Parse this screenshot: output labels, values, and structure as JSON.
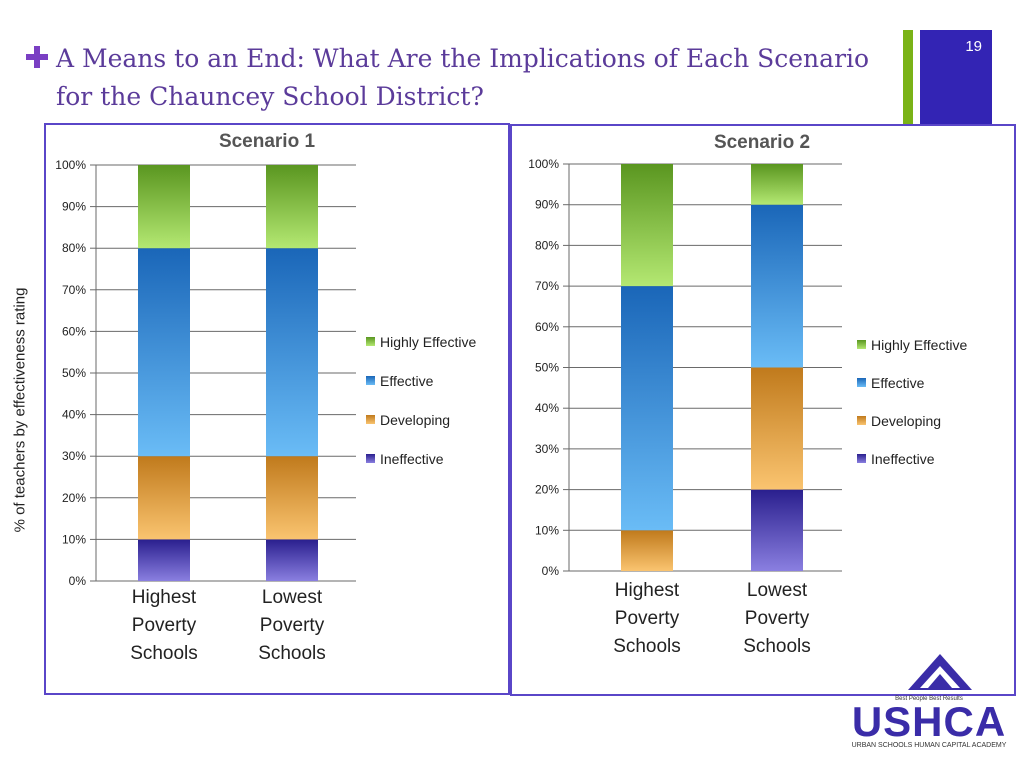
{
  "slide": {
    "title": "A Means to an End: What Are the Implications of Each Scenario for the Chauncey School District?",
    "number": "19",
    "y_axis_label": "% of teachers by effectiveness rating"
  },
  "logo": {
    "text": "USHCA",
    "tagline": "Best People Best Results",
    "subtitle": "URBAN SCHOOLS HUMAN CAPITAL ACADEMY"
  },
  "colors": {
    "accent": "#7a3fc3",
    "panel_border": "#5a46c8",
    "Ineffective": [
      "#2a1f8e",
      "#8a7fe0"
    ],
    "Developing": [
      "#c07a1c",
      "#fac470"
    ],
    "Effective": [
      "#1a66b8",
      "#6abcf6"
    ],
    "Highly Effective": [
      "#5a9620",
      "#b4e872"
    ]
  },
  "chart_data": [
    {
      "type": "bar",
      "stacked": true,
      "title": "Scenario 1",
      "categories": [
        "Highest Poverty Schools",
        "Lowest Poverty Schools"
      ],
      "ylim": [
        0,
        100
      ],
      "yticks": [
        "0%",
        "10%",
        "20%",
        "30%",
        "40%",
        "50%",
        "60%",
        "70%",
        "80%",
        "90%",
        "100%"
      ],
      "grid": true,
      "legend": "right",
      "series": [
        {
          "name": "Ineffective",
          "values": [
            10,
            10
          ]
        },
        {
          "name": "Developing",
          "values": [
            20,
            20
          ]
        },
        {
          "name": "Effective",
          "values": [
            50,
            50
          ]
        },
        {
          "name": "Highly Effective",
          "values": [
            20,
            20
          ]
        }
      ]
    },
    {
      "type": "bar",
      "stacked": true,
      "title": "Scenario 2",
      "categories": [
        "Highest Poverty Schools",
        "Lowest Poverty Schools"
      ],
      "ylim": [
        0,
        100
      ],
      "yticks": [
        "0%",
        "10%",
        "20%",
        "30%",
        "40%",
        "50%",
        "60%",
        "70%",
        "80%",
        "90%",
        "100%"
      ],
      "grid": true,
      "legend": "right",
      "series": [
        {
          "name": "Ineffective",
          "values": [
            0,
            20
          ]
        },
        {
          "name": "Developing",
          "values": [
            10,
            30
          ]
        },
        {
          "name": "Effective",
          "values": [
            60,
            40
          ]
        },
        {
          "name": "Highly Effective",
          "values": [
            30,
            10
          ]
        }
      ]
    }
  ]
}
